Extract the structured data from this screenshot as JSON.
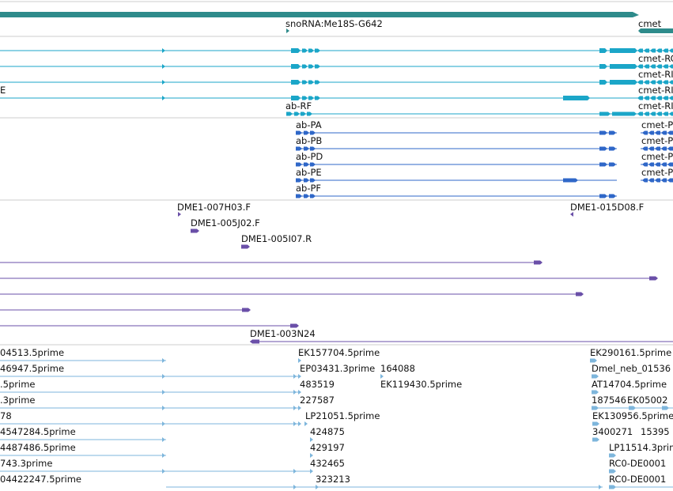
{
  "colors": {
    "gene": "#2e8b8b",
    "transcript": "#1ba6c8",
    "protein": "#2f67c8",
    "clone": "#6a4fa8",
    "est": "#7eb6dc",
    "separator": "#cccccc"
  },
  "tracks": {
    "gene": {
      "labels": [
        "snoRNA:Me18S-G642",
        "cmet"
      ]
    },
    "transcripts": {
      "labels": [
        "cmet-RC",
        "cmet-RI",
        "E",
        "cmet-RI",
        "ab-RF",
        "cmet-RI"
      ]
    },
    "proteins": {
      "labels": [
        "ab-PA",
        "cmet-P",
        "ab-PB",
        "cmet-P",
        "ab-PD",
        "cmet-P",
        "ab-PE",
        "cmet-P",
        "ab-PF"
      ]
    },
    "clones": {
      "labels": [
        "DME1-007H03.F",
        "DME1-015D08.F",
        "DME1-005J02.F",
        "DME1-005I07.R",
        "DME1-003N24"
      ]
    },
    "ests": {
      "labels": [
        "04513.5prime",
        "EK157704.5prime",
        "EK290161.5prime",
        "46947.5prime",
        "EP03431.3prime",
        "164088",
        "Dmel_neb_01536",
        ".5prime",
        "483519",
        "EK119430.5prime",
        "AT14704.5prime",
        ".3prime",
        "227587",
        "187546",
        "EK05002",
        "78",
        "LP21051.5prime",
        "EK130956.5prime",
        "4547284.5prime",
        "424875",
        "3400271",
        "15395",
        "4487486.5prime",
        "429197",
        "LP11514.3prime",
        "743.3prime",
        "432465",
        "RC0-DE0001",
        "04422247.5prime",
        "323213",
        "RC0-DE0001"
      ]
    }
  }
}
